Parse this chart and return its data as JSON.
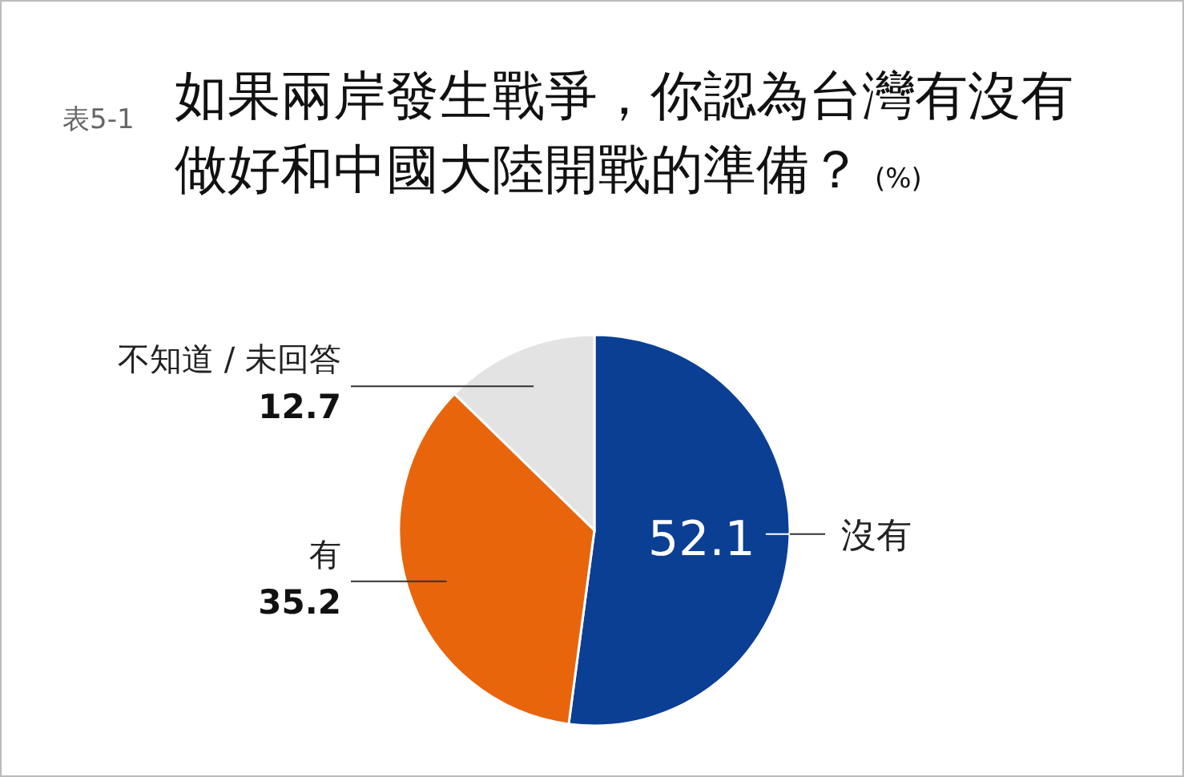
{
  "chart_data": {
    "type": "pie",
    "title": "如果兩岸發生戰爭，你認為台灣有沒有做好和中國大陸開戰的準備？",
    "subtitle": "(%)",
    "annotations": [
      "表5-1"
    ],
    "categories": [
      "沒有",
      "有",
      "不知道 / 未回答"
    ],
    "values": [
      52.1,
      35.2,
      12.7
    ],
    "colors": [
      "#0a3f94",
      "#e8650c",
      "#e3e3e3"
    ],
    "data_labels": true
  }
}
